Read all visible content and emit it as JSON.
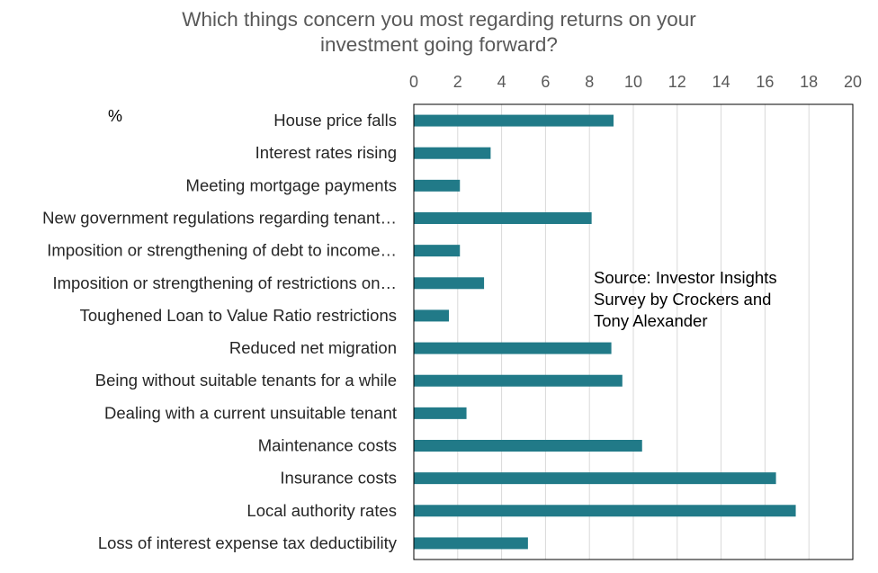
{
  "chart_data": {
    "type": "bar",
    "orientation": "horizontal",
    "title_lines": [
      "Which things concern you most regarding returns on your",
      "investment going forward?"
    ],
    "unit_label": "%",
    "source_lines": [
      "Source: Investor Insights",
      "Survey by Crockers and",
      "Tony Alexander"
    ],
    "categories": [
      "House price falls",
      "Interest rates rising",
      "Meeting mortgage payments",
      "New government regulations regarding tenant…",
      "Imposition or strengthening of debt to income…",
      "Imposition or strengthening of restrictions on…",
      "Toughened Loan to Value Ratio restrictions",
      "Reduced net migration",
      "Being without suitable tenants for a while",
      "Dealing with a current unsuitable tenant",
      "Maintenance costs",
      "Insurance costs",
      "Local authority rates",
      "Loss of interest expense tax deductibility"
    ],
    "values": [
      9.1,
      3.5,
      2.1,
      8.1,
      2.1,
      3.2,
      1.6,
      9.0,
      9.5,
      2.4,
      10.4,
      16.5,
      17.4,
      5.2
    ],
    "xlim": [
      0,
      20
    ],
    "xticks": [
      0,
      2,
      4,
      6,
      8,
      10,
      12,
      14,
      16,
      18,
      20
    ],
    "x_axis_position": "top",
    "grid": true,
    "bar_color": "#217a88",
    "grid_color": "#d9d9d9"
  }
}
